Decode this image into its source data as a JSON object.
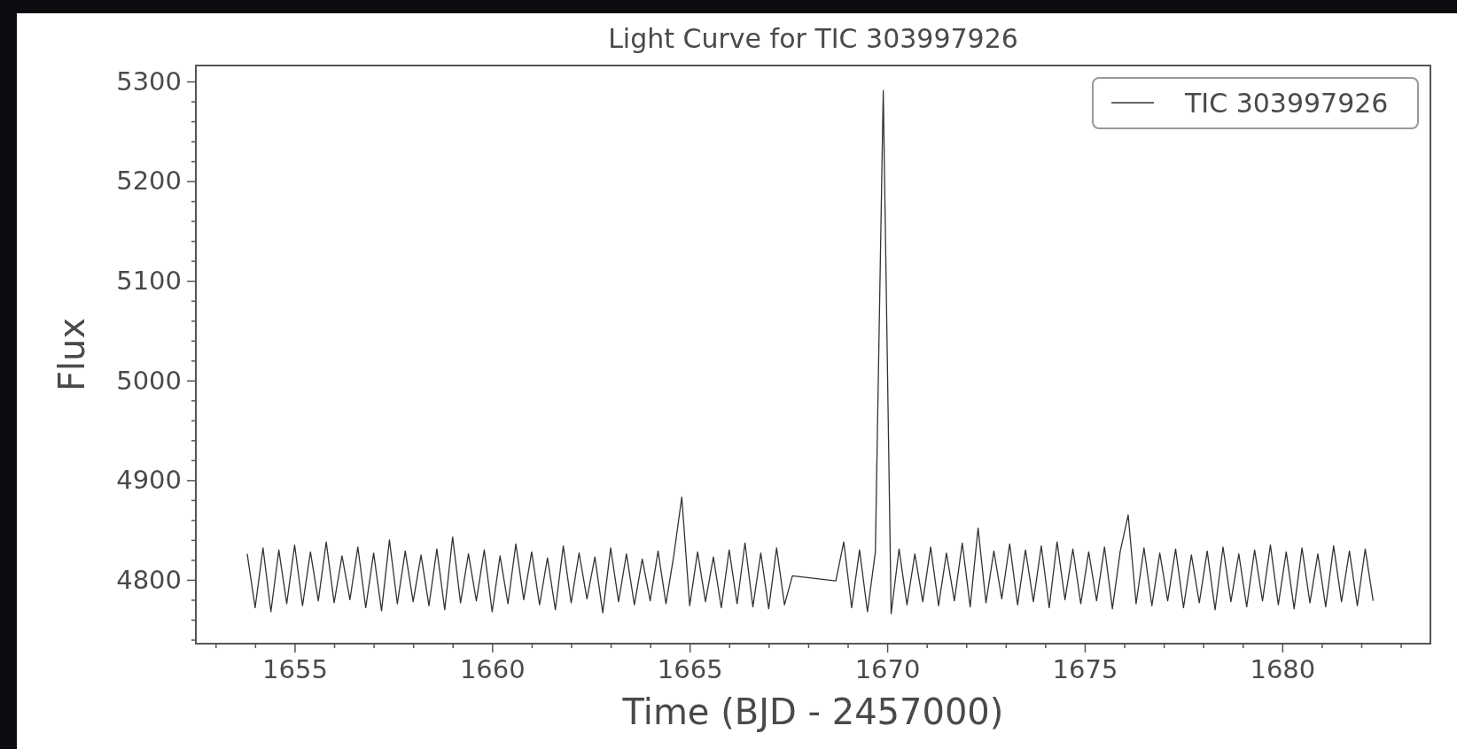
{
  "chart_data": {
    "type": "line",
    "title": "Light Curve for TIC 303997926",
    "xlabel": "Time (BJD - 2457000)",
    "ylabel": "Flux",
    "xlim": [
      1652.5,
      1683.75
    ],
    "xticks": [
      1655,
      1660,
      1665,
      1670,
      1675,
      1680
    ],
    "ylim": [
      4736,
      5316
    ],
    "yticks": [
      4800,
      4900,
      5000,
      5100,
      5200,
      5300
    ],
    "legend": "top right",
    "grid": false,
    "marker": "none",
    "line_style": "solid",
    "series": [
      {
        "name": "TIC 303997926",
        "color": "#333333",
        "x": [
          1653.8,
          1654.0,
          1654.2,
          1654.4,
          1654.6,
          1654.8,
          1655.0,
          1655.2,
          1655.4,
          1655.6,
          1655.8,
          1656.0,
          1656.2,
          1656.4,
          1656.6,
          1656.8,
          1657.0,
          1657.2,
          1657.4,
          1657.6,
          1657.8,
          1658.0,
          1658.2,
          1658.4,
          1658.6,
          1658.8,
          1659.0,
          1659.2,
          1659.4,
          1659.6,
          1659.8,
          1660.0,
          1660.2,
          1660.4,
          1660.6,
          1660.8,
          1661.0,
          1661.2,
          1661.4,
          1661.6,
          1661.8,
          1662.0,
          1662.2,
          1662.4,
          1662.6,
          1662.8,
          1663.0,
          1663.2,
          1663.4,
          1663.6,
          1663.8,
          1664.0,
          1664.2,
          1664.4,
          1664.6,
          1664.8,
          1665.0,
          1665.2,
          1665.4,
          1665.6,
          1665.8,
          1666.0,
          1666.2,
          1666.4,
          1666.6,
          1666.8,
          1667.0,
          1667.2,
          1667.4,
          1667.6,
          1668.7,
          1668.9,
          1669.1,
          1669.3,
          1669.5,
          1669.7,
          1669.9,
          1670.1,
          1670.3,
          1670.5,
          1670.7,
          1670.9,
          1671.1,
          1671.3,
          1671.5,
          1671.7,
          1671.9,
          1672.1,
          1672.3,
          1672.5,
          1672.7,
          1672.9,
          1673.1,
          1673.3,
          1673.5,
          1673.7,
          1673.9,
          1674.1,
          1674.3,
          1674.5,
          1674.7,
          1674.9,
          1675.1,
          1675.3,
          1675.5,
          1675.7,
          1675.9,
          1676.1,
          1676.3,
          1676.5,
          1676.7,
          1676.9,
          1677.1,
          1677.3,
          1677.5,
          1677.7,
          1677.9,
          1678.1,
          1678.3,
          1678.5,
          1678.7,
          1678.9,
          1679.1,
          1679.3,
          1679.5,
          1679.7,
          1679.9,
          1680.1,
          1680.3,
          1680.5,
          1680.7,
          1680.9,
          1681.1,
          1681.3,
          1681.5,
          1681.7,
          1681.9,
          1682.1,
          1682.3
        ],
        "values": [
          4826,
          4772,
          4832,
          4768,
          4830,
          4776,
          4835,
          4774,
          4828,
          4779,
          4838,
          4777,
          4824,
          4780,
          4833,
          4772,
          4827,
          4769,
          4840,
          4776,
          4829,
          4778,
          4825,
          4774,
          4831,
          4770,
          4843,
          4777,
          4826,
          4779,
          4830,
          4768,
          4824,
          4776,
          4836,
          4780,
          4828,
          4775,
          4822,
          4770,
          4834,
          4777,
          4827,
          4781,
          4823,
          4767,
          4832,
          4778,
          4826,
          4775,
          4821,
          4779,
          4829,
          4776,
          4825,
          4883,
          4774,
          4828,
          4778,
          4823,
          4772,
          4830,
          4776,
          4837,
          4773,
          4827,
          4771,
          4832,
          4775,
          4804,
          4799,
          4838,
          4772,
          4830,
          4768,
          4828,
          5291,
          4766,
          4831,
          4775,
          4826,
          4778,
          4833,
          4774,
          4827,
          4779,
          4837,
          4773,
          4852,
          4777,
          4829,
          4781,
          4836,
          4775,
          4830,
          4778,
          4834,
          4772,
          4838,
          4780,
          4831,
          4776,
          4828,
          4779,
          4833,
          4771,
          4829,
          4865,
          4776,
          4832,
          4774,
          4827,
          4779,
          4831,
          4772,
          4825,
          4777,
          4829,
          4770,
          4833,
          4778,
          4826,
          4773,
          4830,
          4779,
          4835,
          4775,
          4828,
          4771,
          4832,
          4777,
          4826,
          4773,
          4834,
          4778,
          4829,
          4774,
          4831,
          4779
        ]
      }
    ]
  }
}
